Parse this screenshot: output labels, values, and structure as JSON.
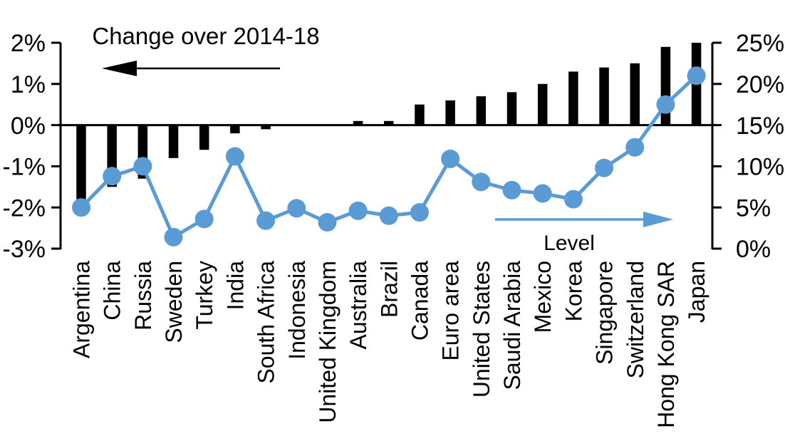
{
  "chart_data": {
    "type": "bar+line",
    "title_annotation": "Change over 2014-18",
    "line_annotation": "Level",
    "categories": [
      "Argentina",
      "China",
      "Russia",
      "Sweden",
      "Turkey",
      "India",
      "South Africa",
      "Indonesia",
      "United Kingdom",
      "Australia",
      "Brazil",
      "Canada",
      "Euro area",
      "United States",
      "Saudi Arabia",
      "Mexico",
      "Korea",
      "Singapore",
      "Switzerland",
      "Hong Kong SAR",
      "Japan"
    ],
    "series": [
      {
        "name": "Change over 2014-18",
        "type": "bar",
        "axis": "left",
        "color": "#000000",
        "values": [
          -1.8,
          -1.5,
          -1.3,
          -0.8,
          -0.6,
          -0.2,
          -0.1,
          0,
          0,
          0.1,
          0.1,
          0.5,
          0.6,
          0.7,
          0.8,
          1.0,
          1.3,
          1.4,
          1.5,
          1.9,
          2.0
        ]
      },
      {
        "name": "Level",
        "type": "line",
        "axis": "right",
        "color": "#5B9BD5",
        "values": [
          5.0,
          8.8,
          10.0,
          1.4,
          3.6,
          11.2,
          3.4,
          4.9,
          3.2,
          4.6,
          4.0,
          4.4,
          10.9,
          8.1,
          7.1,
          6.7,
          6.0,
          9.8,
          12.3,
          17.5,
          21.0
        ]
      }
    ],
    "left_axis": {
      "tick_labels": [
        "2%",
        "1%",
        "0%",
        "-1%",
        "-2%",
        "-3%"
      ],
      "min": -3,
      "max": 2,
      "step": 1
    },
    "right_axis": {
      "tick_labels": [
        "25%",
        "20%",
        "15%",
        "10%",
        "5%",
        "0%"
      ],
      "min": 0,
      "max": 25,
      "step": 5
    },
    "grid": "off",
    "colors": {
      "bar": "#000000",
      "line": "#5B9BD5",
      "axis": "#000000",
      "background": "#ffffff"
    }
  }
}
